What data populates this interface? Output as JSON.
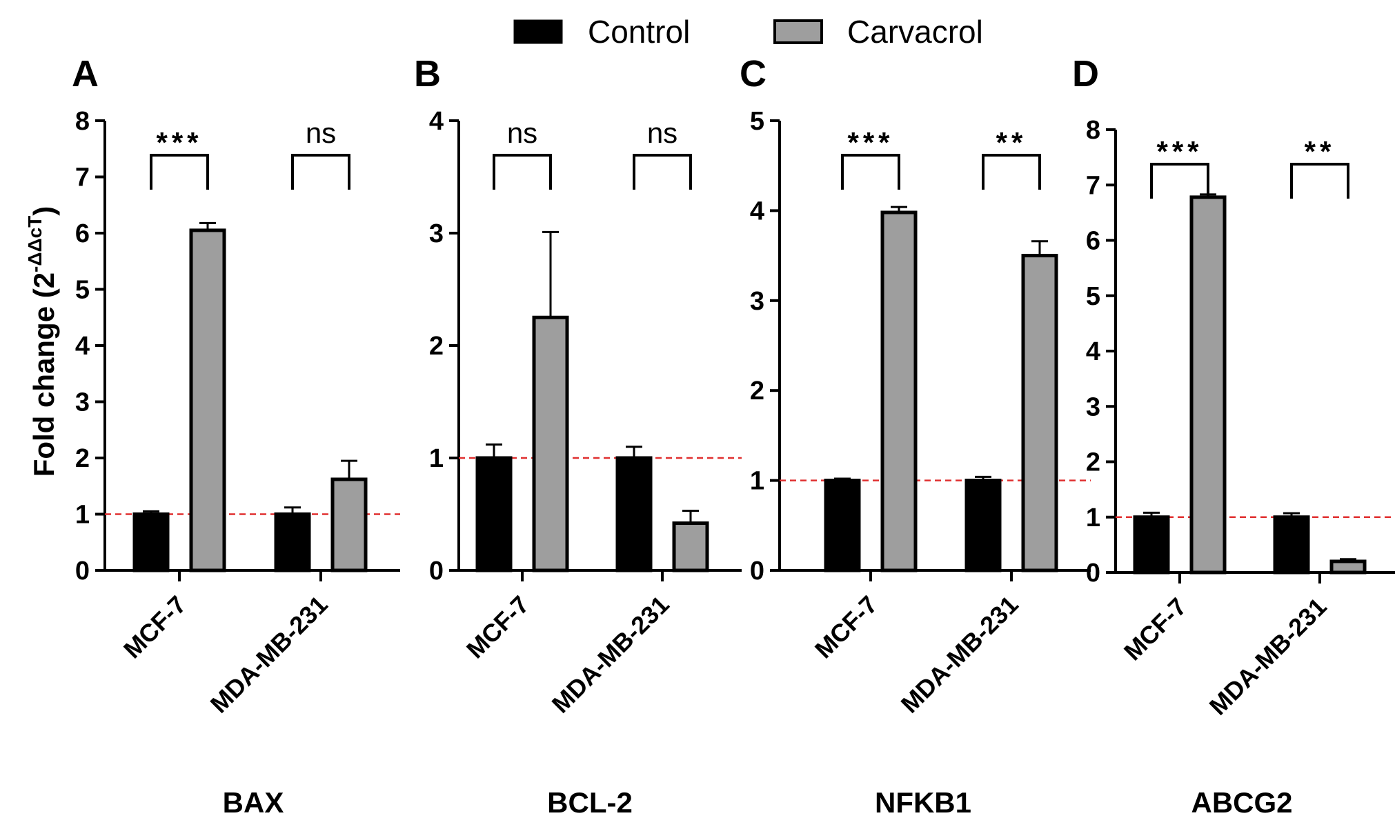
{
  "legend": {
    "items": [
      {
        "label": "Control",
        "color": "#000000"
      },
      {
        "label": "Carvacrol",
        "color": "#9e9e9e"
      }
    ]
  },
  "y_axis_label": {
    "text": "Fold change (2",
    "superscript": "-ΔΔcT",
    "suffix": ")"
  },
  "reference_line": {
    "value": 1,
    "color": "#e03030"
  },
  "chart_data": [
    {
      "type": "bar",
      "panel": "A",
      "gene": "BAX",
      "categories": [
        "MCF-7",
        "MDA-MB-231"
      ],
      "series": [
        {
          "name": "Control",
          "values": [
            1.0,
            1.0
          ],
          "errors": [
            0.05,
            0.12
          ]
        },
        {
          "name": "Carvacrol",
          "values": [
            6.05,
            1.62
          ],
          "errors": [
            0.13,
            0.33
          ]
        }
      ],
      "significance": [
        "***",
        "ns"
      ],
      "ylim": [
        0,
        8
      ],
      "yticks": [
        0,
        1,
        2,
        3,
        4,
        5,
        6,
        7,
        8
      ],
      "ylabel": "Fold change (2^-ΔΔcT)",
      "xlabel": "BAX"
    },
    {
      "type": "bar",
      "panel": "B",
      "gene": "BCL-2",
      "categories": [
        "MCF-7",
        "MDA-MB-231"
      ],
      "series": [
        {
          "name": "Control",
          "values": [
            1.0,
            1.0
          ],
          "errors": [
            0.12,
            0.1
          ]
        },
        {
          "name": "Carvacrol",
          "values": [
            2.25,
            0.42
          ],
          "errors": [
            0.76,
            0.11
          ]
        }
      ],
      "significance": [
        "ns",
        "ns"
      ],
      "ylim": [
        0,
        4
      ],
      "yticks": [
        0,
        1,
        2,
        3,
        4
      ],
      "xlabel": "BCL-2"
    },
    {
      "type": "bar",
      "panel": "C",
      "gene": "NFKB1",
      "categories": [
        "MCF-7",
        "MDA-MB-231"
      ],
      "series": [
        {
          "name": "Control",
          "values": [
            1.0,
            1.0
          ],
          "errors": [
            0.02,
            0.04
          ]
        },
        {
          "name": "Carvacrol",
          "values": [
            3.98,
            3.5
          ],
          "errors": [
            0.06,
            0.16
          ]
        }
      ],
      "significance": [
        "***",
        "**"
      ],
      "ylim": [
        0,
        5
      ],
      "yticks": [
        0,
        1,
        2,
        3,
        4,
        5
      ],
      "xlabel": "NFKB1"
    },
    {
      "type": "bar",
      "panel": "D",
      "gene": "ABCG2",
      "categories": [
        "MCF-7",
        "MDA-MB-231"
      ],
      "series": [
        {
          "name": "Control",
          "values": [
            1.0,
            1.0
          ],
          "errors": [
            0.08,
            0.07
          ]
        },
        {
          "name": "Carvacrol",
          "values": [
            6.78,
            0.2
          ],
          "errors": [
            0.05,
            0.04
          ]
        }
      ],
      "significance": [
        "***",
        "**"
      ],
      "ylim": [
        0,
        8
      ],
      "yticks": [
        0,
        1,
        2,
        3,
        4,
        5,
        6,
        7,
        8
      ],
      "xlabel": "ABCG2"
    }
  ]
}
